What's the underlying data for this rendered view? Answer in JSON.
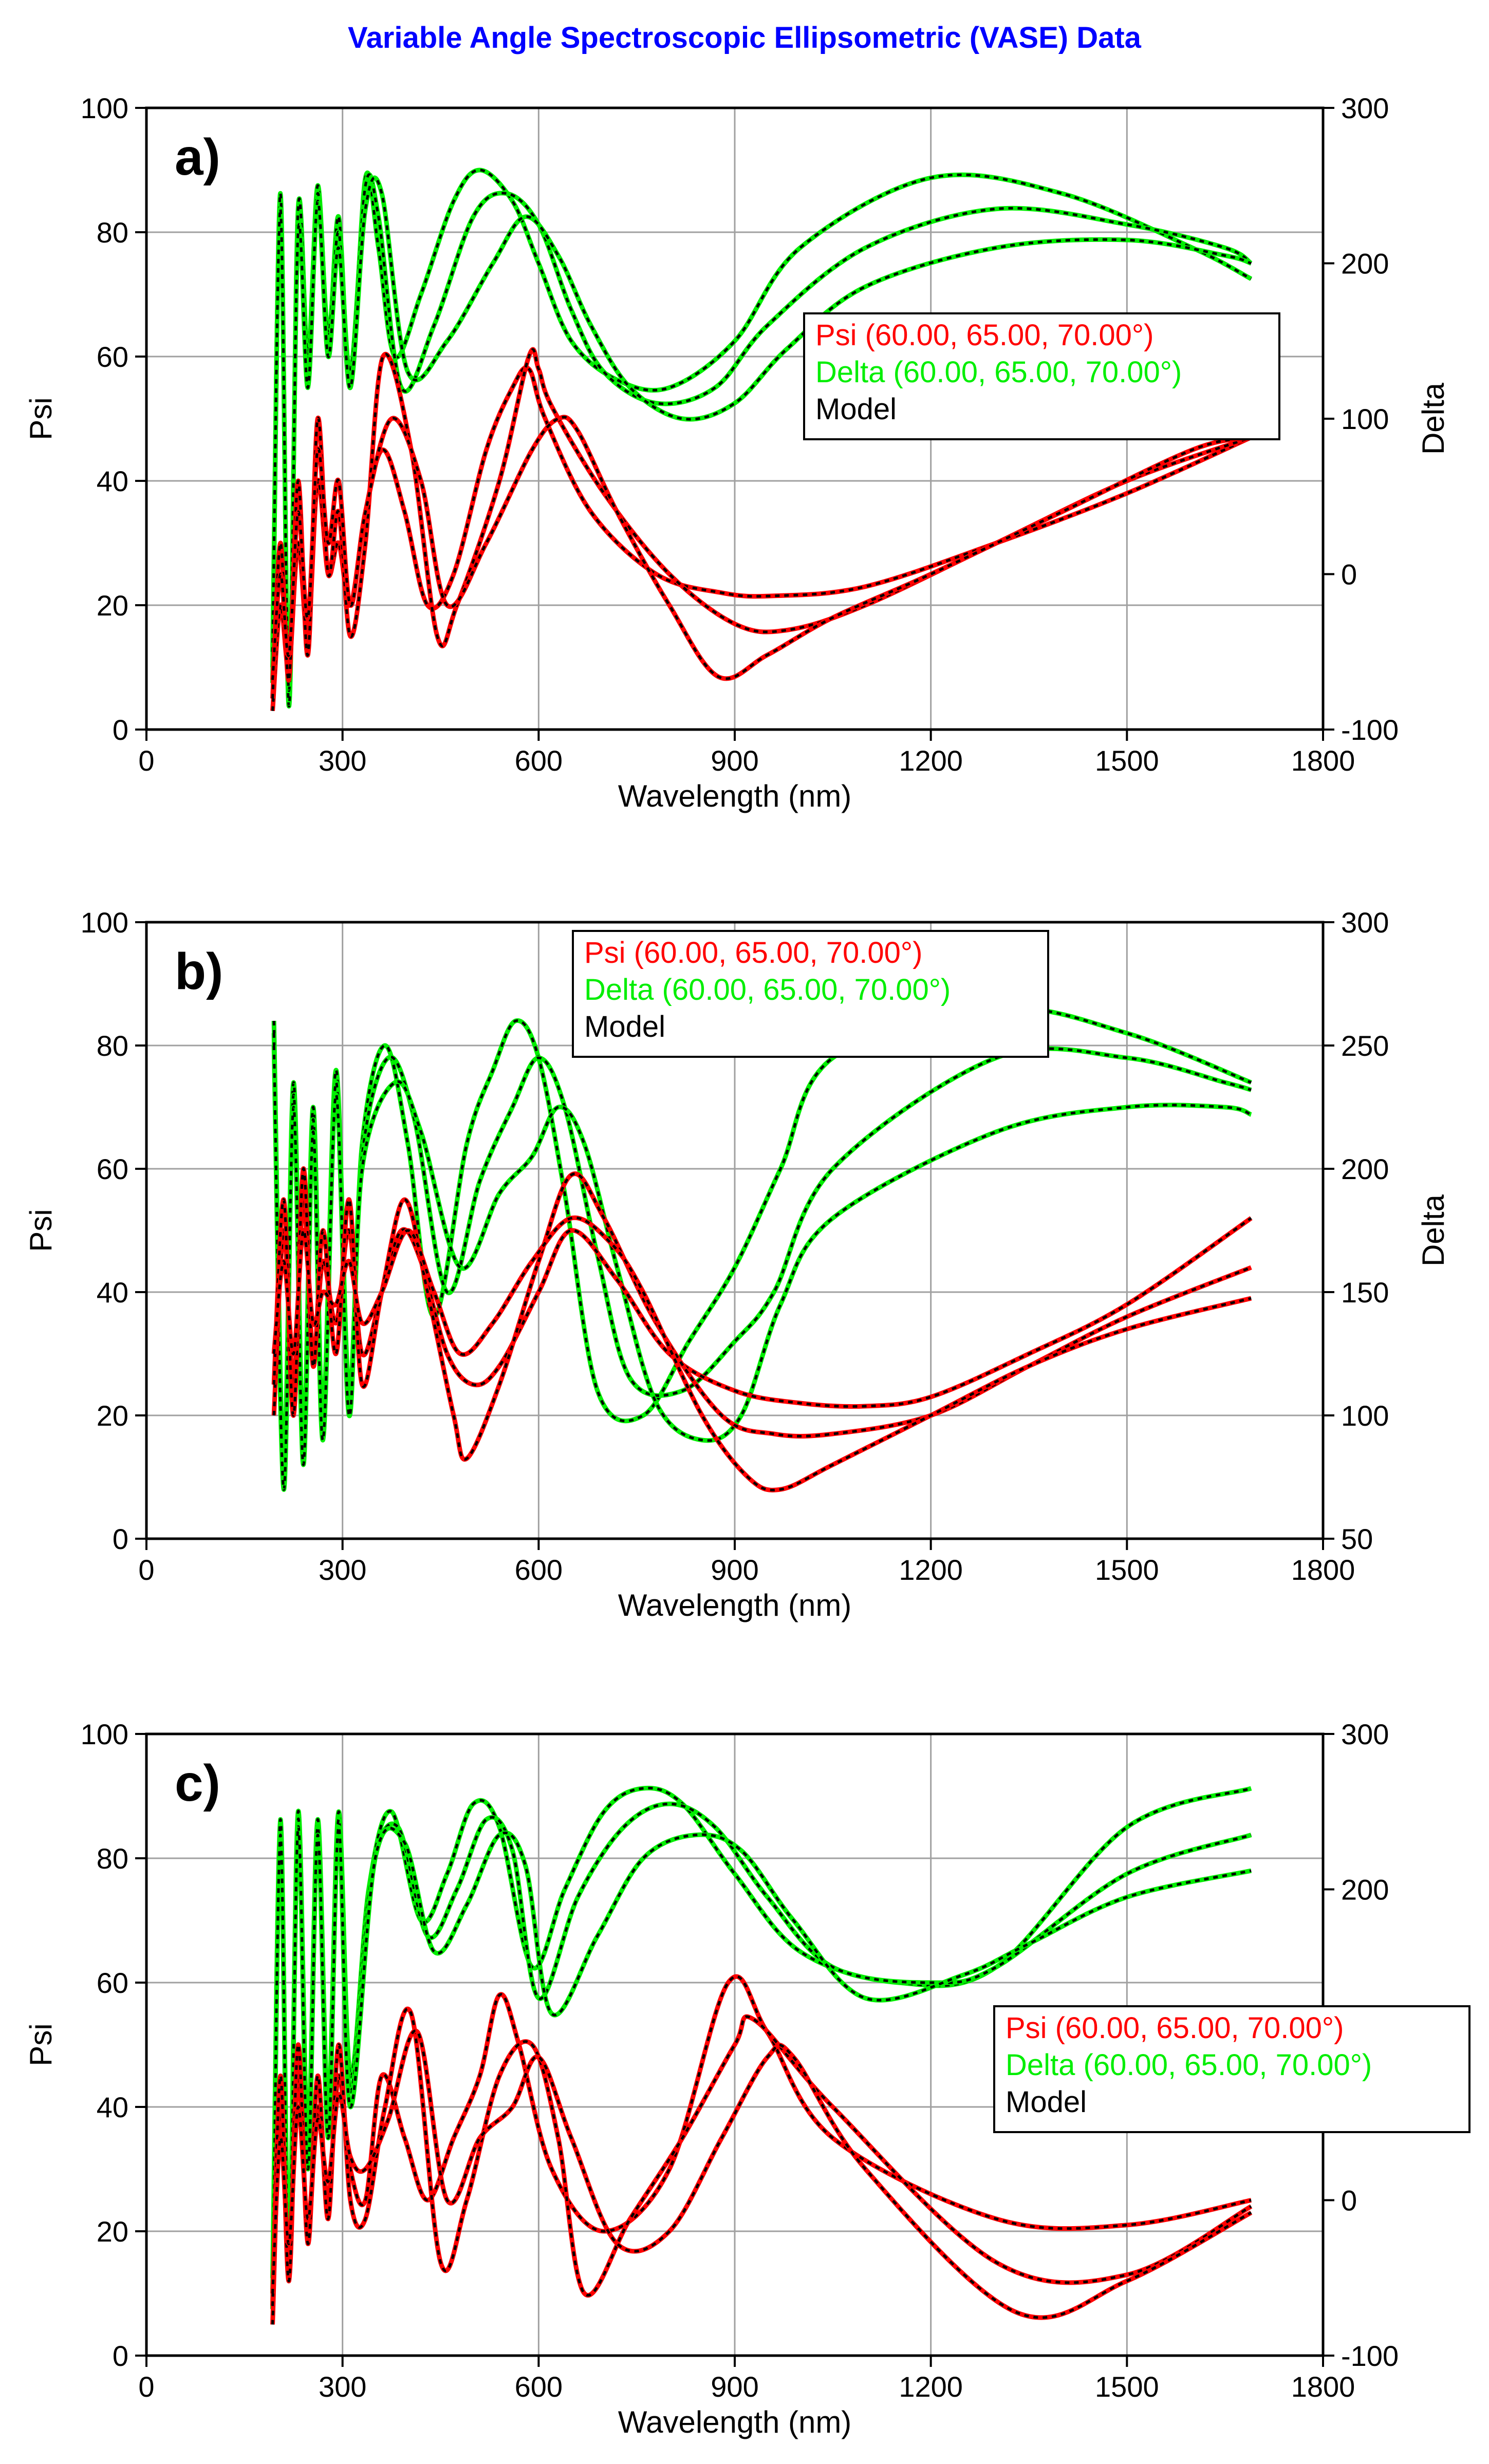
{
  "title": "Variable Angle Spectroscopic Ellipsometric (VASE) Data",
  "colors": {
    "psi": "#ff0000",
    "delta": "#00ee00",
    "model": "#000000",
    "title": "#0000ff",
    "grid": "#a0a0a0"
  },
  "chart_data": [
    {
      "type": "line",
      "panel_label": "a)",
      "xlabel": "Wavelength (nm)",
      "ylabel": "Psi",
      "y2label": "Delta",
      "xlim": [
        0,
        1800
      ],
      "ylim": [
        0,
        100
      ],
      "y2lim": [
        -100,
        300
      ],
      "xticks": [
        "0",
        "300",
        "600",
        "900",
        "1200",
        "1500",
        "1800"
      ],
      "yticks": [
        "0",
        "20",
        "40",
        "60",
        "80",
        "100"
      ],
      "y2ticks": [
        "-100",
        "0",
        "100",
        "200",
        "300"
      ],
      "grid": true,
      "legend_position": "right",
      "legend": [
        "Psi (60.00, 65.00, 70.00°)",
        "Delta (60.00, 65.00, 70.00°)",
        "Model"
      ],
      "psi_series": [
        {
          "x": [
            193,
            205,
            218,
            232,
            247,
            262,
            278,
            294,
            312,
            335,
            362,
            395,
            430,
            470,
            520,
            560,
            585,
            610,
            680,
            780,
            880,
            960,
            1100,
            1300,
            1500,
            1690
          ],
          "y": [
            3,
            20,
            10,
            30,
            15,
            40,
            25,
            30,
            20,
            35,
            45,
            35,
            20,
            25,
            45,
            55,
            58,
            50,
            35,
            25,
            22,
            21.5,
            23,
            30,
            38,
            47
          ]
        },
        {
          "x": [
            193,
            205,
            218,
            232,
            247,
            262,
            278,
            294,
            312,
            335,
            362,
            405,
            445,
            475,
            540,
            585,
            600,
            620,
            700,
            800,
            900,
            980,
            1100,
            1300,
            1500,
            1690
          ],
          "y": [
            5,
            30,
            8,
            40,
            12,
            50,
            25,
            35,
            15,
            30,
            60,
            45,
            15,
            20,
            40,
            60,
            58,
            52,
            38,
            25,
            17,
            16,
            20,
            30,
            40,
            47
          ]
        },
        {
          "x": [
            193,
            205,
            218,
            232,
            247,
            262,
            278,
            294,
            312,
            335,
            375,
            420,
            460,
            520,
            590,
            630,
            660,
            720,
            800,
            875,
            950,
            1050,
            1200,
            1400,
            1600,
            1690
          ],
          "y": [
            8,
            25,
            12,
            35,
            18,
            45,
            30,
            40,
            20,
            35,
            50,
            40,
            20,
            30,
            45,
            50,
            48,
            35,
            20,
            8.5,
            12,
            18,
            25,
            35,
            45,
            47
          ]
        }
      ],
      "delta_series": [
        {
          "x": [
            193,
            205,
            218,
            232,
            247,
            262,
            278,
            294,
            312,
            335,
            355,
            380,
            420,
            470,
            510,
            560,
            600,
            650,
            720,
            800,
            900,
            1000,
            1200,
            1400,
            1600,
            1690
          ],
          "y": [
            -60,
            240,
            -80,
            230,
            130,
            250,
            150,
            230,
            120,
            255,
            210,
            140,
            180,
            240,
            260,
            240,
            200,
            150,
            125,
            120,
            150,
            210,
            255,
            245,
            210,
            190
          ]
        },
        {
          "x": [
            193,
            205,
            218,
            232,
            247,
            262,
            278,
            294,
            312,
            335,
            355,
            390,
            440,
            500,
            550,
            600,
            650,
            700,
            780,
            870,
            950,
            1100,
            1300,
            1500,
            1650,
            1690
          ],
          "y": [
            -70,
            245,
            -85,
            235,
            140,
            245,
            155,
            220,
            130,
            250,
            230,
            120,
            160,
            230,
            245,
            225,
            170,
            130,
            110,
            120,
            160,
            210,
            235,
            225,
            210,
            200
          ]
        },
        {
          "x": [
            193,
            205,
            218,
            232,
            247,
            262,
            278,
            294,
            312,
            335,
            360,
            400,
            460,
            530,
            580,
            630,
            680,
            740,
            820,
            900,
            980,
            1100,
            1300,
            1500,
            1650,
            1690
          ],
          "y": [
            -50,
            235,
            -75,
            220,
            120,
            240,
            140,
            210,
            120,
            235,
            245,
            130,
            150,
            200,
            230,
            205,
            160,
            120,
            100,
            110,
            145,
            185,
            210,
            215,
            205,
            200
          ]
        }
      ]
    },
    {
      "type": "line",
      "panel_label": "b)",
      "xlabel": "Wavelength (nm)",
      "ylabel": "Psi",
      "y2label": "Delta",
      "xlim": [
        0,
        1800
      ],
      "ylim": [
        0,
        100
      ],
      "y2lim": [
        50,
        300
      ],
      "xticks": [
        "0",
        "300",
        "600",
        "900",
        "1200",
        "1500",
        "1800"
      ],
      "yticks": [
        "0",
        "20",
        "40",
        "60",
        "80",
        "100"
      ],
      "y2ticks": [
        "50",
        "100",
        "150",
        "200",
        "250",
        "300"
      ],
      "grid": true,
      "legend_position": "top-center",
      "legend": [
        "Psi (60.00, 65.00, 70.00°)",
        "Delta (60.00, 65.00, 70.00°)",
        "Model"
      ],
      "psi_series": [
        {
          "x": [
            195,
            210,
            225,
            240,
            255,
            270,
            290,
            310,
            330,
            360,
            390,
            420,
            460,
            500,
            540,
            600,
            650,
            720,
            800,
            900,
            1000,
            1100,
            1200,
            1350,
            1500,
            1690
          ],
          "y": [
            20,
            50,
            25,
            55,
            30,
            45,
            35,
            50,
            30,
            40,
            50,
            45,
            30,
            25,
            28,
            40,
            50,
            42,
            30,
            24,
            22,
            21.5,
            23,
            30,
            38,
            52
          ]
        },
        {
          "x": [
            195,
            210,
            225,
            240,
            255,
            270,
            290,
            310,
            330,
            360,
            395,
            430,
            470,
            490,
            540,
            600,
            650,
            700,
            780,
            880,
            960,
            1050,
            1200,
            1350,
            1500,
            1690
          ],
          "y": [
            25,
            55,
            20,
            60,
            28,
            50,
            30,
            55,
            25,
            40,
            55,
            40,
            20,
            13,
            25,
            45,
            59,
            52,
            35,
            20,
            17,
            17,
            20,
            28,
            36,
            44
          ]
        },
        {
          "x": [
            195,
            210,
            225,
            240,
            255,
            270,
            290,
            310,
            330,
            360,
            400,
            440,
            480,
            530,
            590,
            650,
            710,
            760,
            850,
            920,
            970,
            1050,
            1200,
            1350,
            1500,
            1690
          ],
          "y": [
            30,
            45,
            30,
            50,
            35,
            40,
            38,
            45,
            35,
            40,
            50,
            40,
            30,
            35,
            45,
            52,
            48,
            40,
            20,
            10,
            8,
            12,
            20,
            28,
            34,
            39
          ]
        }
      ],
      "delta_series": [
        {
          "x": [
            195,
            210,
            225,
            240,
            255,
            270,
            290,
            310,
            330,
            365,
            400,
            440,
            490,
            530,
            565,
            600,
            640,
            690,
            760,
            830,
            900,
            970,
            1050,
            1300,
            1500,
            1690
          ],
          "y": [
            260,
            80,
            235,
            90,
            225,
            100,
            240,
            110,
            210,
            250,
            210,
            140,
            210,
            240,
            260,
            245,
            190,
            110,
            100,
            130,
            160,
            200,
            245,
            265,
            255,
            235
          ]
        },
        {
          "x": [
            195,
            210,
            225,
            240,
            255,
            270,
            290,
            310,
            330,
            370,
            410,
            460,
            510,
            560,
            600,
            640,
            690,
            740,
            820,
            900,
            960,
            1050,
            1300,
            1500,
            1650,
            1690
          ],
          "y": [
            255,
            75,
            230,
            85,
            220,
            95,
            235,
            105,
            205,
            245,
            220,
            150,
            195,
            225,
            245,
            225,
            165,
            115,
            110,
            130,
            150,
            200,
            245,
            245,
            235,
            232
          ]
        },
        {
          "x": [
            195,
            210,
            225,
            240,
            255,
            270,
            290,
            310,
            330,
            380,
            420,
            480,
            540,
            590,
            630,
            670,
            720,
            780,
            850,
            910,
            970,
            1050,
            1300,
            1500,
            1650,
            1690
          ],
          "y": [
            250,
            70,
            225,
            80,
            215,
            90,
            230,
            100,
            200,
            235,
            215,
            160,
            190,
            205,
            225,
            210,
            160,
            105,
            90,
            100,
            145,
            180,
            215,
            225,
            225,
            222
          ]
        }
      ]
    },
    {
      "type": "line",
      "panel_label": "c)",
      "xlabel": "Wavelength (nm)",
      "ylabel": "Psi",
      "y2label": "",
      "xlim": [
        0,
        1800
      ],
      "ylim": [
        0,
        100
      ],
      "y2lim": [
        -100,
        300
      ],
      "xticks": [
        "0",
        "300",
        "600",
        "900",
        "1200",
        "1500",
        "1800"
      ],
      "yticks": [
        "0",
        "20",
        "40",
        "60",
        "80",
        "100"
      ],
      "y2ticks": [
        "-100",
        "0",
        "200",
        "300"
      ],
      "grid": true,
      "legend_position": "right",
      "legend": [
        "Psi (60.00, 65.00, 70.00°)",
        "Delta (60.00, 65.00, 70.00°)",
        "Model"
      ],
      "psi_series": [
        {
          "x": [
            193,
            205,
            218,
            232,
            247,
            262,
            278,
            294,
            312,
            335,
            360,
            395,
            430,
            470,
            510,
            540,
            570,
            620,
            700,
            800,
            890,
            950,
            1050,
            1300,
            1500,
            1690
          ],
          "y": [
            5,
            40,
            15,
            45,
            20,
            40,
            25,
            45,
            30,
            25,
            45,
            35,
            25,
            35,
            45,
            58,
            50,
            30,
            20,
            30,
            60,
            52,
            35,
            22,
            21,
            25
          ]
        },
        {
          "x": [
            193,
            205,
            218,
            232,
            247,
            262,
            278,
            294,
            312,
            335,
            365,
            405,
            450,
            490,
            540,
            590,
            630,
            670,
            740,
            820,
            900,
            930,
            1050,
            1300,
            1500,
            1690
          ],
          "y": [
            8,
            45,
            12,
            50,
            18,
            45,
            22,
            50,
            25,
            22,
            40,
            55,
            15,
            25,
            45,
            50,
            35,
            10,
            22,
            35,
            50,
            54,
            40,
            15,
            13,
            24
          ]
        },
        {
          "x": [
            193,
            205,
            218,
            232,
            247,
            262,
            278,
            294,
            312,
            335,
            370,
            415,
            460,
            510,
            560,
            600,
            650,
            720,
            800,
            880,
            950,
            990,
            1100,
            1330,
            1500,
            1690
          ],
          "y": [
            10,
            35,
            18,
            40,
            22,
            38,
            28,
            42,
            32,
            30,
            38,
            52,
            25,
            35,
            40,
            48,
            35,
            18,
            20,
            35,
            48,
            48,
            30,
            7,
            12,
            23
          ]
        }
      ],
      "delta_series": [
        {
          "x": [
            193,
            205,
            218,
            232,
            247,
            262,
            278,
            294,
            312,
            340,
            375,
            420,
            460,
            500,
            540,
            590,
            640,
            700,
            760,
            820,
            900,
            1000,
            1150,
            1300,
            1500,
            1690
          ],
          "y": [
            -50,
            240,
            -30,
            250,
            40,
            245,
            60,
            250,
            80,
            200,
            250,
            180,
            210,
            255,
            240,
            150,
            200,
            250,
            265,
            255,
            210,
            160,
            140,
            150,
            240,
            265
          ]
        },
        {
          "x": [
            193,
            205,
            218,
            232,
            247,
            262,
            278,
            294,
            312,
            345,
            385,
            430,
            475,
            520,
            560,
            600,
            660,
            730,
            800,
            870,
            950,
            1050,
            1200,
            1300,
            1500,
            1690
          ],
          "y": [
            -60,
            245,
            -40,
            245,
            30,
            240,
            50,
            245,
            70,
            210,
            240,
            170,
            200,
            245,
            225,
            130,
            195,
            240,
            255,
            240,
            195,
            150,
            140,
            150,
            210,
            235
          ]
        },
        {
          "x": [
            193,
            205,
            218,
            232,
            247,
            262,
            278,
            294,
            312,
            350,
            395,
            440,
            490,
            540,
            580,
            620,
            690,
            760,
            840,
            910,
            990,
            1100,
            1250,
            1350,
            1500,
            1690
          ],
          "y": [
            -70,
            235,
            -50,
            240,
            20,
            235,
            40,
            240,
            60,
            220,
            230,
            160,
            190,
            235,
            215,
            120,
            170,
            220,
            235,
            225,
            180,
            130,
            145,
            165,
            195,
            212
          ]
        }
      ]
    }
  ]
}
